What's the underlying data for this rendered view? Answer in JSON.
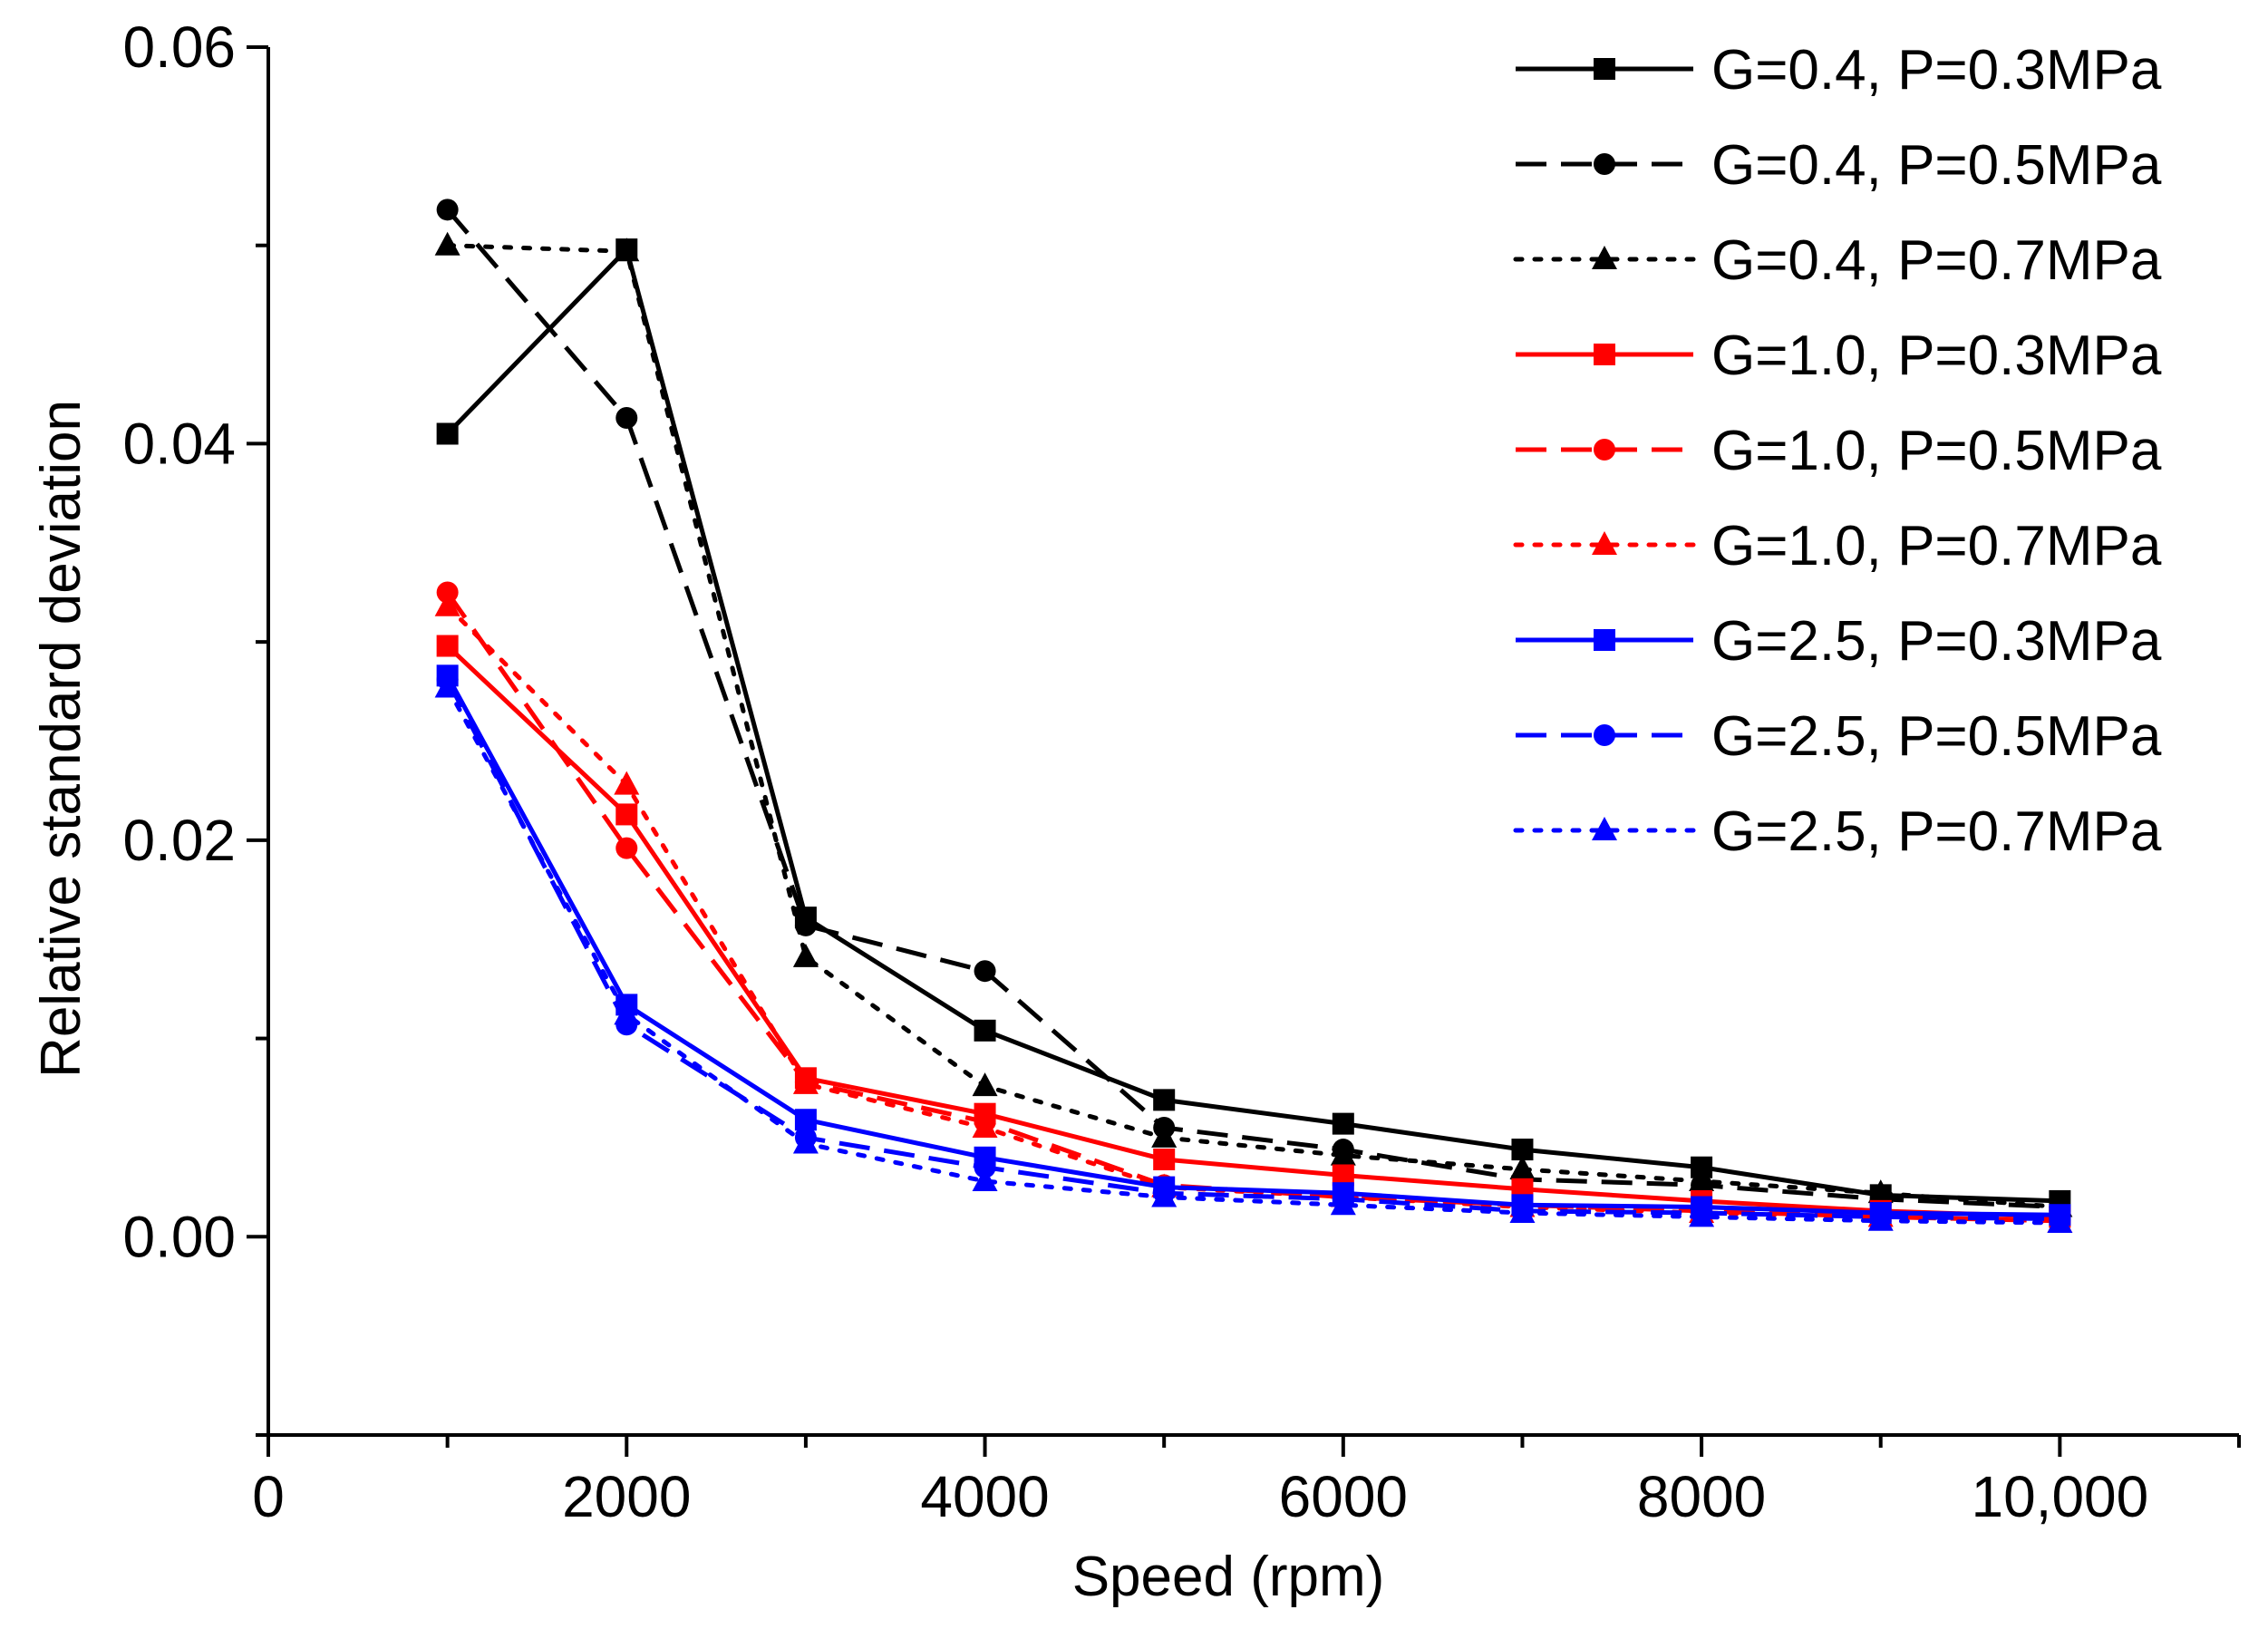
{
  "chart_data": {
    "type": "line",
    "title": "",
    "xlabel": "Speed (rpm)",
    "ylabel": "Relative standard deviation",
    "xlim": [
      0,
      11000
    ],
    "ylim": [
      -0.01,
      0.06
    ],
    "x_ticks": [
      {
        "value": 0,
        "label": "0"
      },
      {
        "value": 2000,
        "label": "2000"
      },
      {
        "value": 4000,
        "label": "4000"
      },
      {
        "value": 6000,
        "label": "6000"
      },
      {
        "value": 8000,
        "label": "8000"
      },
      {
        "value": 10000,
        "label": "10,000"
      }
    ],
    "y_ticks": [
      {
        "value": 0.0,
        "label": "0.00"
      },
      {
        "value": 0.02,
        "label": "0.02"
      },
      {
        "value": 0.04,
        "label": "0.04"
      },
      {
        "value": 0.06,
        "label": "0.06"
      }
    ],
    "grid": false,
    "legend_position": "top-right",
    "x": [
      1000,
      2000,
      3000,
      4000,
      5000,
      6000,
      7000,
      8000,
      9000,
      10000
    ],
    "series": [
      {
        "name": "G=0.4, P=0.3MPa",
        "color": "#000000",
        "line": "solid",
        "marker": "square",
        "values": [
          0.0405,
          0.0498,
          0.0161,
          0.0104,
          0.0069,
          0.0057,
          0.0044,
          0.0035,
          0.0021,
          0.0018
        ]
      },
      {
        "name": "G=0.4, P=0.5MPa",
        "color": "#000000",
        "line": "dashed",
        "marker": "circle",
        "values": [
          0.0518,
          0.0413,
          0.0157,
          0.0134,
          0.0055,
          0.0044,
          0.0029,
          0.0026,
          0.0019,
          0.0015
        ]
      },
      {
        "name": "G=0.4, P=0.7MPa",
        "color": "#000000",
        "line": "dotted",
        "marker": "triangle",
        "values": [
          0.05,
          0.0497,
          0.0141,
          0.0076,
          0.005,
          0.0041,
          0.0034,
          0.0028,
          0.0022,
          0.0015
        ]
      },
      {
        "name": "G=1.0, P=0.3MPa",
        "color": "#ff0000",
        "line": "solid",
        "marker": "square",
        "values": [
          0.0298,
          0.0213,
          0.008,
          0.0062,
          0.0039,
          0.0031,
          0.0024,
          0.0018,
          0.0013,
          0.001
        ]
      },
      {
        "name": "G=1.0, P=0.5MPa",
        "color": "#ff0000",
        "line": "dashed",
        "marker": "circle",
        "values": [
          0.0325,
          0.0196,
          0.0078,
          0.0058,
          0.0026,
          0.002,
          0.0016,
          0.0013,
          0.001,
          0.0008
        ]
      },
      {
        "name": "G=1.0, P=0.7MPa",
        "color": "#ff0000",
        "line": "dotted",
        "marker": "triangle",
        "values": [
          0.0318,
          0.0228,
          0.0077,
          0.0055,
          0.0025,
          0.002,
          0.0015,
          0.0012,
          0.001,
          0.0007
        ]
      },
      {
        "name": "G=2.5, P=0.3MPa",
        "color": "#0000ff",
        "line": "solid",
        "marker": "square",
        "values": [
          0.0283,
          0.0117,
          0.0059,
          0.004,
          0.0025,
          0.0022,
          0.0016,
          0.0015,
          0.0012,
          0.0011
        ]
      },
      {
        "name": "G=2.5, P=0.5MPa",
        "color": "#0000ff",
        "line": "dashed",
        "marker": "circle",
        "values": [
          0.0281,
          0.0107,
          0.005,
          0.0035,
          0.0022,
          0.0019,
          0.0013,
          0.0012,
          0.001,
          0.0009
        ]
      },
      {
        "name": "G=2.5, P=0.7MPa",
        "color": "#0000ff",
        "line": "dotted",
        "marker": "triangle",
        "values": [
          0.0277,
          0.0112,
          0.0047,
          0.0028,
          0.002,
          0.0016,
          0.0012,
          0.001,
          0.0008,
          0.0007
        ]
      }
    ]
  }
}
